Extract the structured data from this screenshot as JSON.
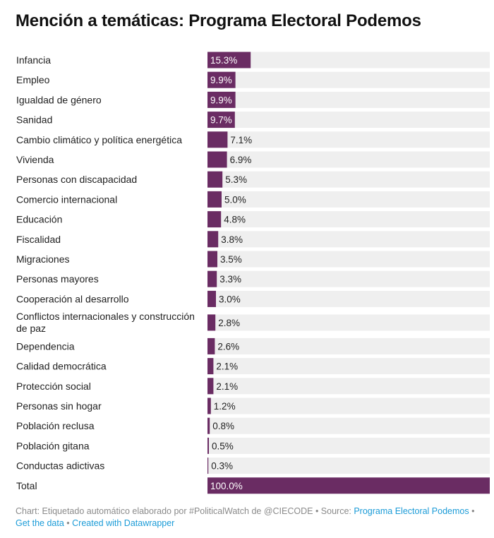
{
  "title": "Mención a temáticas: Programa Electoral Podemos",
  "colors": {
    "bar": "#6a2c63",
    "track": "#efefef"
  },
  "chart_data": {
    "type": "bar",
    "orientation": "horizontal",
    "value_suffix": "%",
    "xlim": [
      0,
      100
    ],
    "categories": [
      "Infancia",
      "Empleo",
      "Igualdad de género",
      "Sanidad",
      "Cambio climático y política energética",
      "Vivienda",
      "Personas con discapacidad",
      "Comercio internacional",
      "Educación",
      "Fiscalidad",
      "Migraciones",
      "Personas mayores",
      "Cooperación al desarrollo",
      "Conflictos internacionales y construcción de paz",
      "Dependencia",
      "Calidad democrática",
      "Protección social",
      "Personas sin hogar",
      "Población reclusa",
      "Población gitana",
      "Conductas adictivas",
      "Total"
    ],
    "values": [
      15.3,
      9.9,
      9.9,
      9.7,
      7.1,
      6.9,
      5.3,
      5.0,
      4.8,
      3.8,
      3.5,
      3.3,
      3.0,
      2.8,
      2.6,
      2.1,
      2.1,
      1.2,
      0.8,
      0.5,
      0.3,
      100.0
    ],
    "value_labels": [
      "15.3%",
      "9.9%",
      "9.9%",
      "9.7%",
      "7.1%",
      "6.9%",
      "5.3%",
      "5.0%",
      "4.8%",
      "3.8%",
      "3.5%",
      "3.3%",
      "3.0%",
      "2.8%",
      "2.6%",
      "2.1%",
      "2.1%",
      "1.2%",
      "0.8%",
      "0.5%",
      "0.3%",
      "100.0%"
    ]
  },
  "footer": {
    "prefix": "Chart: Etiquetado automático elaborado por #PoliticalWatch de @CIECODE • Source: ",
    "source_link": "Programa Electoral Podemos",
    "sep1": " • ",
    "get_data": "Get the data",
    "sep2": " • ",
    "created_with": "Created with Datawrapper"
  }
}
